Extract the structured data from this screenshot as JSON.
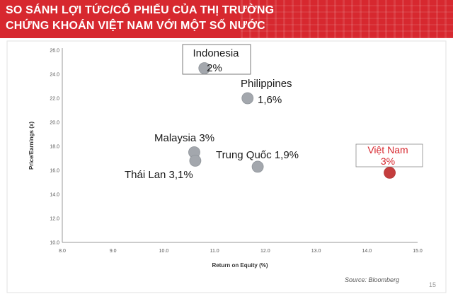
{
  "banner": {
    "line1": "SO SÁNH LỢI TỨC/CỔ PHIẾU CỦA THỊ TRƯỜNG",
    "line2": "CHỨNG KHOÁN VIỆT NAM VỚI MỘT SỐ NƯỚC",
    "color": "#d7282f"
  },
  "chart_data": {
    "type": "scatter",
    "xlabel": "Return on Equity (%)",
    "ylabel": "Price/Earnings (x)",
    "xlim": [
      8.0,
      15.0
    ],
    "ylim": [
      10.0,
      26.0
    ],
    "x_ticks": [
      "8.0",
      "9.0",
      "10.0",
      "11.0",
      "12.0",
      "13.0",
      "14.0",
      "15.0"
    ],
    "y_ticks": [
      "10.0",
      "12.0",
      "14.0",
      "16.0",
      "18.0",
      "20.0",
      "22.0",
      "24.0",
      "26.0"
    ],
    "grid": false,
    "points": [
      {
        "name": "Indonesia",
        "value": "2%",
        "x": 10.8,
        "y": 24.5,
        "color": "#a3a7ad"
      },
      {
        "name": "Philippines",
        "value": "1,6%",
        "x": 11.65,
        "y": 22.0,
        "color": "#a3a7ad"
      },
      {
        "name": "Malaysia 3%",
        "value": "",
        "x": 10.6,
        "y": 17.5,
        "color": "#a3a7ad"
      },
      {
        "name": "Thái Lan 3,1%",
        "value": "",
        "x": 10.62,
        "y": 16.8,
        "color": "#a3a7ad"
      },
      {
        "name": "Trung Quốc 1,9%",
        "value": "",
        "x": 11.85,
        "y": 16.3,
        "color": "#a3a7ad"
      },
      {
        "name": "Việt Nam",
        "value": "3%",
        "x": 14.45,
        "y": 15.8,
        "color": "#c43d3d",
        "highlight": true
      }
    ]
  },
  "source": "Source: Bloomberg",
  "page_number": "15"
}
